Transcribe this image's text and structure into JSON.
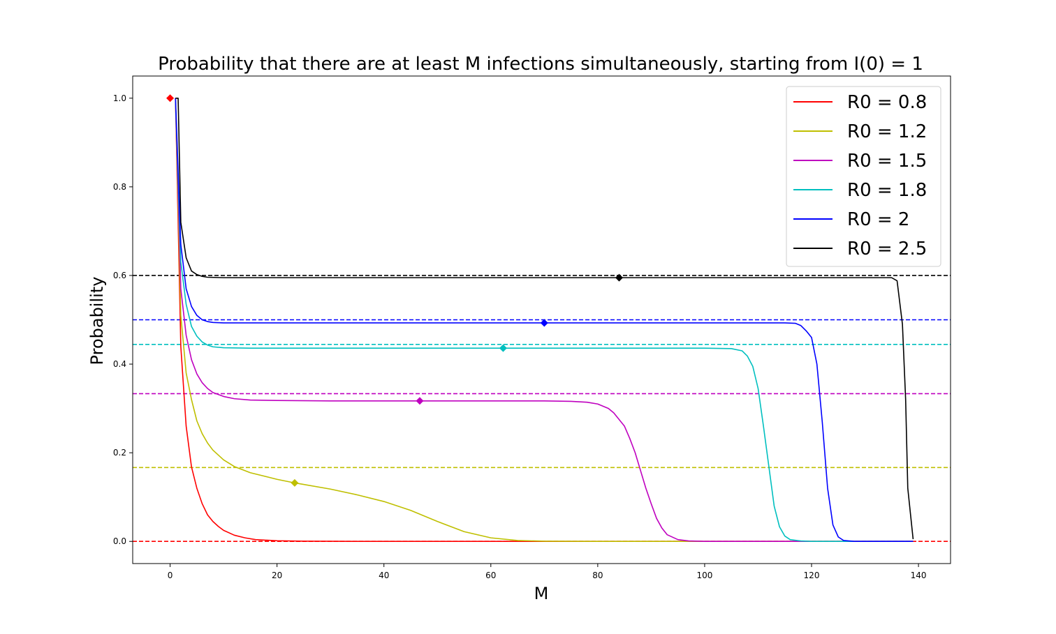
{
  "chart_data": {
    "type": "line",
    "title": "Probability that there are at least M infections simultaneously, starting from I(0) = 1",
    "xlabel": "M",
    "ylabel": "Probability",
    "xlim": [
      -7,
      146
    ],
    "ylim": [
      -0.05,
      1.05
    ],
    "xticks": [
      0,
      20,
      40,
      60,
      80,
      100,
      120,
      140
    ],
    "yticks": [
      0.0,
      0.2,
      0.4,
      0.6,
      0.8,
      1.0
    ],
    "grid": false,
    "legend_position": "upper right",
    "series": [
      {
        "name": "R0 = 0.8",
        "color": "#ff0000",
        "asymptote": 0.0,
        "marker": [
          0,
          1.0
        ],
        "points": [
          [
            1,
            1.0
          ],
          [
            2,
            0.44
          ],
          [
            3,
            0.26
          ],
          [
            4,
            0.168
          ],
          [
            5,
            0.12
          ],
          [
            6,
            0.085
          ],
          [
            7,
            0.06
          ],
          [
            8,
            0.045
          ],
          [
            9,
            0.034
          ],
          [
            10,
            0.025
          ],
          [
            12,
            0.014
          ],
          [
            14,
            0.008
          ],
          [
            16,
            0.004
          ],
          [
            20,
            0.0015
          ],
          [
            25,
            0.0005
          ],
          [
            30,
            0.0002
          ],
          [
            40,
            0.0
          ],
          [
            60,
            0.0
          ],
          [
            80,
            0.0
          ],
          [
            100,
            0.0
          ],
          [
            120,
            0.0
          ],
          [
            139,
            0.0
          ]
        ]
      },
      {
        "name": "R0 = 1.2",
        "color": "#bfbf00",
        "asymptote": 0.1667,
        "marker": [
          23.3,
          0.132
        ],
        "points": [
          [
            1,
            1.0
          ],
          [
            2,
            0.51
          ],
          [
            3,
            0.38
          ],
          [
            4,
            0.32
          ],
          [
            5,
            0.272
          ],
          [
            6,
            0.243
          ],
          [
            7,
            0.222
          ],
          [
            8,
            0.206
          ],
          [
            10,
            0.184
          ],
          [
            12,
            0.169
          ],
          [
            15,
            0.155
          ],
          [
            20,
            0.14
          ],
          [
            23.3,
            0.132
          ],
          [
            30,
            0.118
          ],
          [
            35,
            0.105
          ],
          [
            40,
            0.09
          ],
          [
            45,
            0.07
          ],
          [
            50,
            0.045
          ],
          [
            55,
            0.022
          ],
          [
            60,
            0.008
          ],
          [
            65,
            0.002
          ],
          [
            70,
            0.0005
          ],
          [
            80,
            0.0
          ],
          [
            100,
            0.0
          ],
          [
            120,
            0.0
          ],
          [
            139,
            0.0
          ]
        ]
      },
      {
        "name": "R0 = 1.5",
        "color": "#bf00bf",
        "asymptote": 0.3333,
        "marker": [
          46.7,
          0.317
        ],
        "points": [
          [
            1,
            1.0
          ],
          [
            2,
            0.57
          ],
          [
            3,
            0.465
          ],
          [
            4,
            0.41
          ],
          [
            5,
            0.378
          ],
          [
            6,
            0.358
          ],
          [
            7,
            0.345
          ],
          [
            8,
            0.336
          ],
          [
            10,
            0.327
          ],
          [
            12,
            0.322
          ],
          [
            15,
            0.319
          ],
          [
            20,
            0.318
          ],
          [
            30,
            0.317
          ],
          [
            46.7,
            0.317
          ],
          [
            60,
            0.317
          ],
          [
            70,
            0.317
          ],
          [
            75,
            0.316
          ],
          [
            78,
            0.314
          ],
          [
            80,
            0.31
          ],
          [
            82,
            0.3
          ],
          [
            83,
            0.29
          ],
          [
            85,
            0.26
          ],
          [
            86,
            0.232
          ],
          [
            87,
            0.2
          ],
          [
            88,
            0.16
          ],
          [
            89,
            0.12
          ],
          [
            90,
            0.085
          ],
          [
            91,
            0.052
          ],
          [
            92,
            0.03
          ],
          [
            93,
            0.015
          ],
          [
            95,
            0.004
          ],
          [
            97,
            0.001
          ],
          [
            100,
            0.0
          ],
          [
            120,
            0.0
          ],
          [
            139,
            0.0
          ]
        ]
      },
      {
        "name": "R0 = 1.8",
        "color": "#00bfbf",
        "asymptote": 0.4444,
        "marker": [
          62.3,
          0.436
        ],
        "points": [
          [
            1,
            1.0
          ],
          [
            2,
            0.63
          ],
          [
            3,
            0.535
          ],
          [
            4,
            0.485
          ],
          [
            5,
            0.463
          ],
          [
            6,
            0.45
          ],
          [
            7,
            0.443
          ],
          [
            8,
            0.439
          ],
          [
            10,
            0.437
          ],
          [
            15,
            0.436
          ],
          [
            30,
            0.436
          ],
          [
            62.3,
            0.436
          ],
          [
            80,
            0.436
          ],
          [
            100,
            0.436
          ],
          [
            105,
            0.435
          ],
          [
            107,
            0.43
          ],
          [
            108,
            0.418
          ],
          [
            109,
            0.395
          ],
          [
            110,
            0.345
          ],
          [
            111,
            0.26
          ],
          [
            112,
            0.17
          ],
          [
            113,
            0.08
          ],
          [
            114,
            0.033
          ],
          [
            115,
            0.012
          ],
          [
            116,
            0.004
          ],
          [
            118,
            0.001
          ],
          [
            120,
            0.0
          ],
          [
            139,
            0.0
          ]
        ]
      },
      {
        "name": "R0 = 2",
        "color": "#0000ff",
        "asymptote": 0.5,
        "marker": [
          70,
          0.493
        ],
        "points": [
          [
            1,
            1.0
          ],
          [
            2,
            0.67
          ],
          [
            3,
            0.57
          ],
          [
            4,
            0.53
          ],
          [
            5,
            0.51
          ],
          [
            6,
            0.5
          ],
          [
            7,
            0.496
          ],
          [
            8,
            0.494
          ],
          [
            10,
            0.493
          ],
          [
            30,
            0.493
          ],
          [
            70,
            0.493
          ],
          [
            100,
            0.493
          ],
          [
            115,
            0.493
          ],
          [
            117,
            0.492
          ],
          [
            118,
            0.487
          ],
          [
            119,
            0.475
          ],
          [
            120,
            0.46
          ],
          [
            121,
            0.4
          ],
          [
            122,
            0.27
          ],
          [
            123,
            0.12
          ],
          [
            124,
            0.037
          ],
          [
            125,
            0.01
          ],
          [
            126,
            0.002
          ],
          [
            128,
            0.0
          ],
          [
            139,
            0.0
          ]
        ]
      },
      {
        "name": "R0 = 2.5",
        "color": "#000000",
        "asymptote": 0.6,
        "marker": [
          84,
          0.595
        ],
        "points": [
          [
            1,
            1.0
          ],
          [
            1.5,
            1.0
          ],
          [
            2,
            0.72
          ],
          [
            3,
            0.64
          ],
          [
            4,
            0.61
          ],
          [
            5,
            0.602
          ],
          [
            6,
            0.598
          ],
          [
            7,
            0.596
          ],
          [
            10,
            0.595
          ],
          [
            30,
            0.595
          ],
          [
            84,
            0.595
          ],
          [
            120,
            0.595
          ],
          [
            135,
            0.595
          ],
          [
            136,
            0.588
          ],
          [
            137,
            0.49
          ],
          [
            137.6,
            0.32
          ],
          [
            138,
            0.12
          ],
          [
            139,
            0.005
          ]
        ]
      }
    ]
  }
}
